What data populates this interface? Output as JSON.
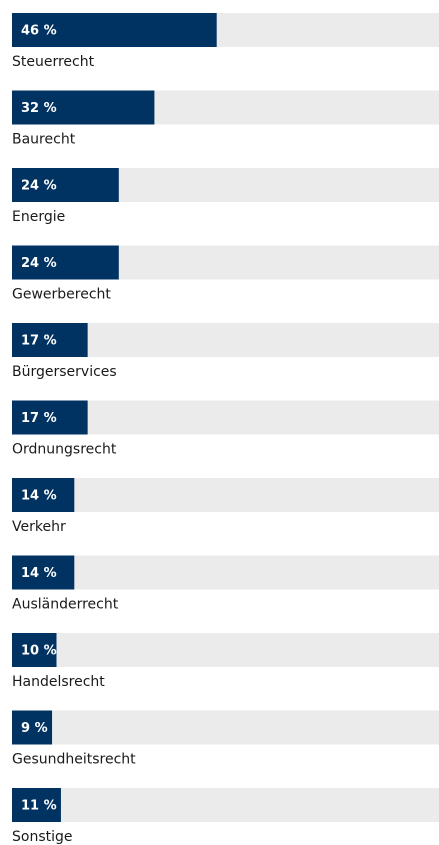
{
  "chart_data": {
    "type": "bar",
    "categories": [
      "Steuerrecht",
      "Baurecht",
      "Energie",
      "Gewerberecht",
      "Bürgerservices",
      "Ordnungsrecht",
      "Verkehr",
      "Ausländerrecht",
      "Handelsrecht",
      "Gesundheitsrecht",
      "Sonstige"
    ],
    "values": [
      46,
      32,
      24,
      24,
      17,
      17,
      14,
      14,
      10,
      9,
      11
    ],
    "value_labels": [
      "46 %",
      "32 %",
      "24 %",
      "24 %",
      "17 %",
      "17 %",
      "14 %",
      "14 %",
      "10 %",
      "9 %",
      "11 %"
    ],
    "color": "#003362",
    "track_color": "#ebebeb",
    "xlim": [
      0,
      100
    ]
  }
}
